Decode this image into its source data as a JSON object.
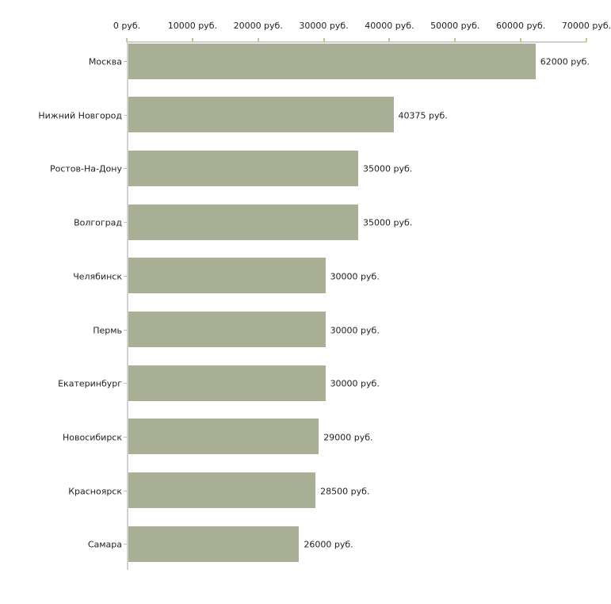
{
  "chart_data": {
    "type": "bar",
    "orientation": "horizontal",
    "title": "",
    "xlabel": "",
    "ylabel": "",
    "categories": [
      "Москва",
      "Нижний Новгород",
      "Ростов-На-Дону",
      "Волгоград",
      "Челябинск",
      "Пермь",
      "Екатеринбург",
      "Новосибирск",
      "Красноярск",
      "Самара"
    ],
    "values": [
      62000,
      40375,
      35000,
      35000,
      30000,
      30000,
      30000,
      29000,
      28500,
      26000
    ],
    "value_labels": [
      "62000 руб.",
      "40375 руб.",
      "35000 руб.",
      "35000 руб.",
      "30000 руб.",
      "30000 руб.",
      "30000 руб.",
      "29000 руб.",
      "28500 руб.",
      "26000 руб."
    ],
    "x_ticks": [
      0,
      10000,
      20000,
      30000,
      40000,
      50000,
      60000,
      70000
    ],
    "x_tick_labels": [
      "0 руб.",
      "10000 руб.",
      "20000 руб.",
      "30000 руб.",
      "40000 руб.",
      "50000 руб.",
      "60000 руб.",
      "70000 руб."
    ],
    "xlim": [
      0,
      70000
    ],
    "grid": false,
    "legend": false,
    "colors": {
      "bar_fill": "#a9b095",
      "axis_line": "#d0d0d0",
      "tick_mark": "#c6c693",
      "text": "#222222",
      "background": "#ffffff"
    }
  }
}
